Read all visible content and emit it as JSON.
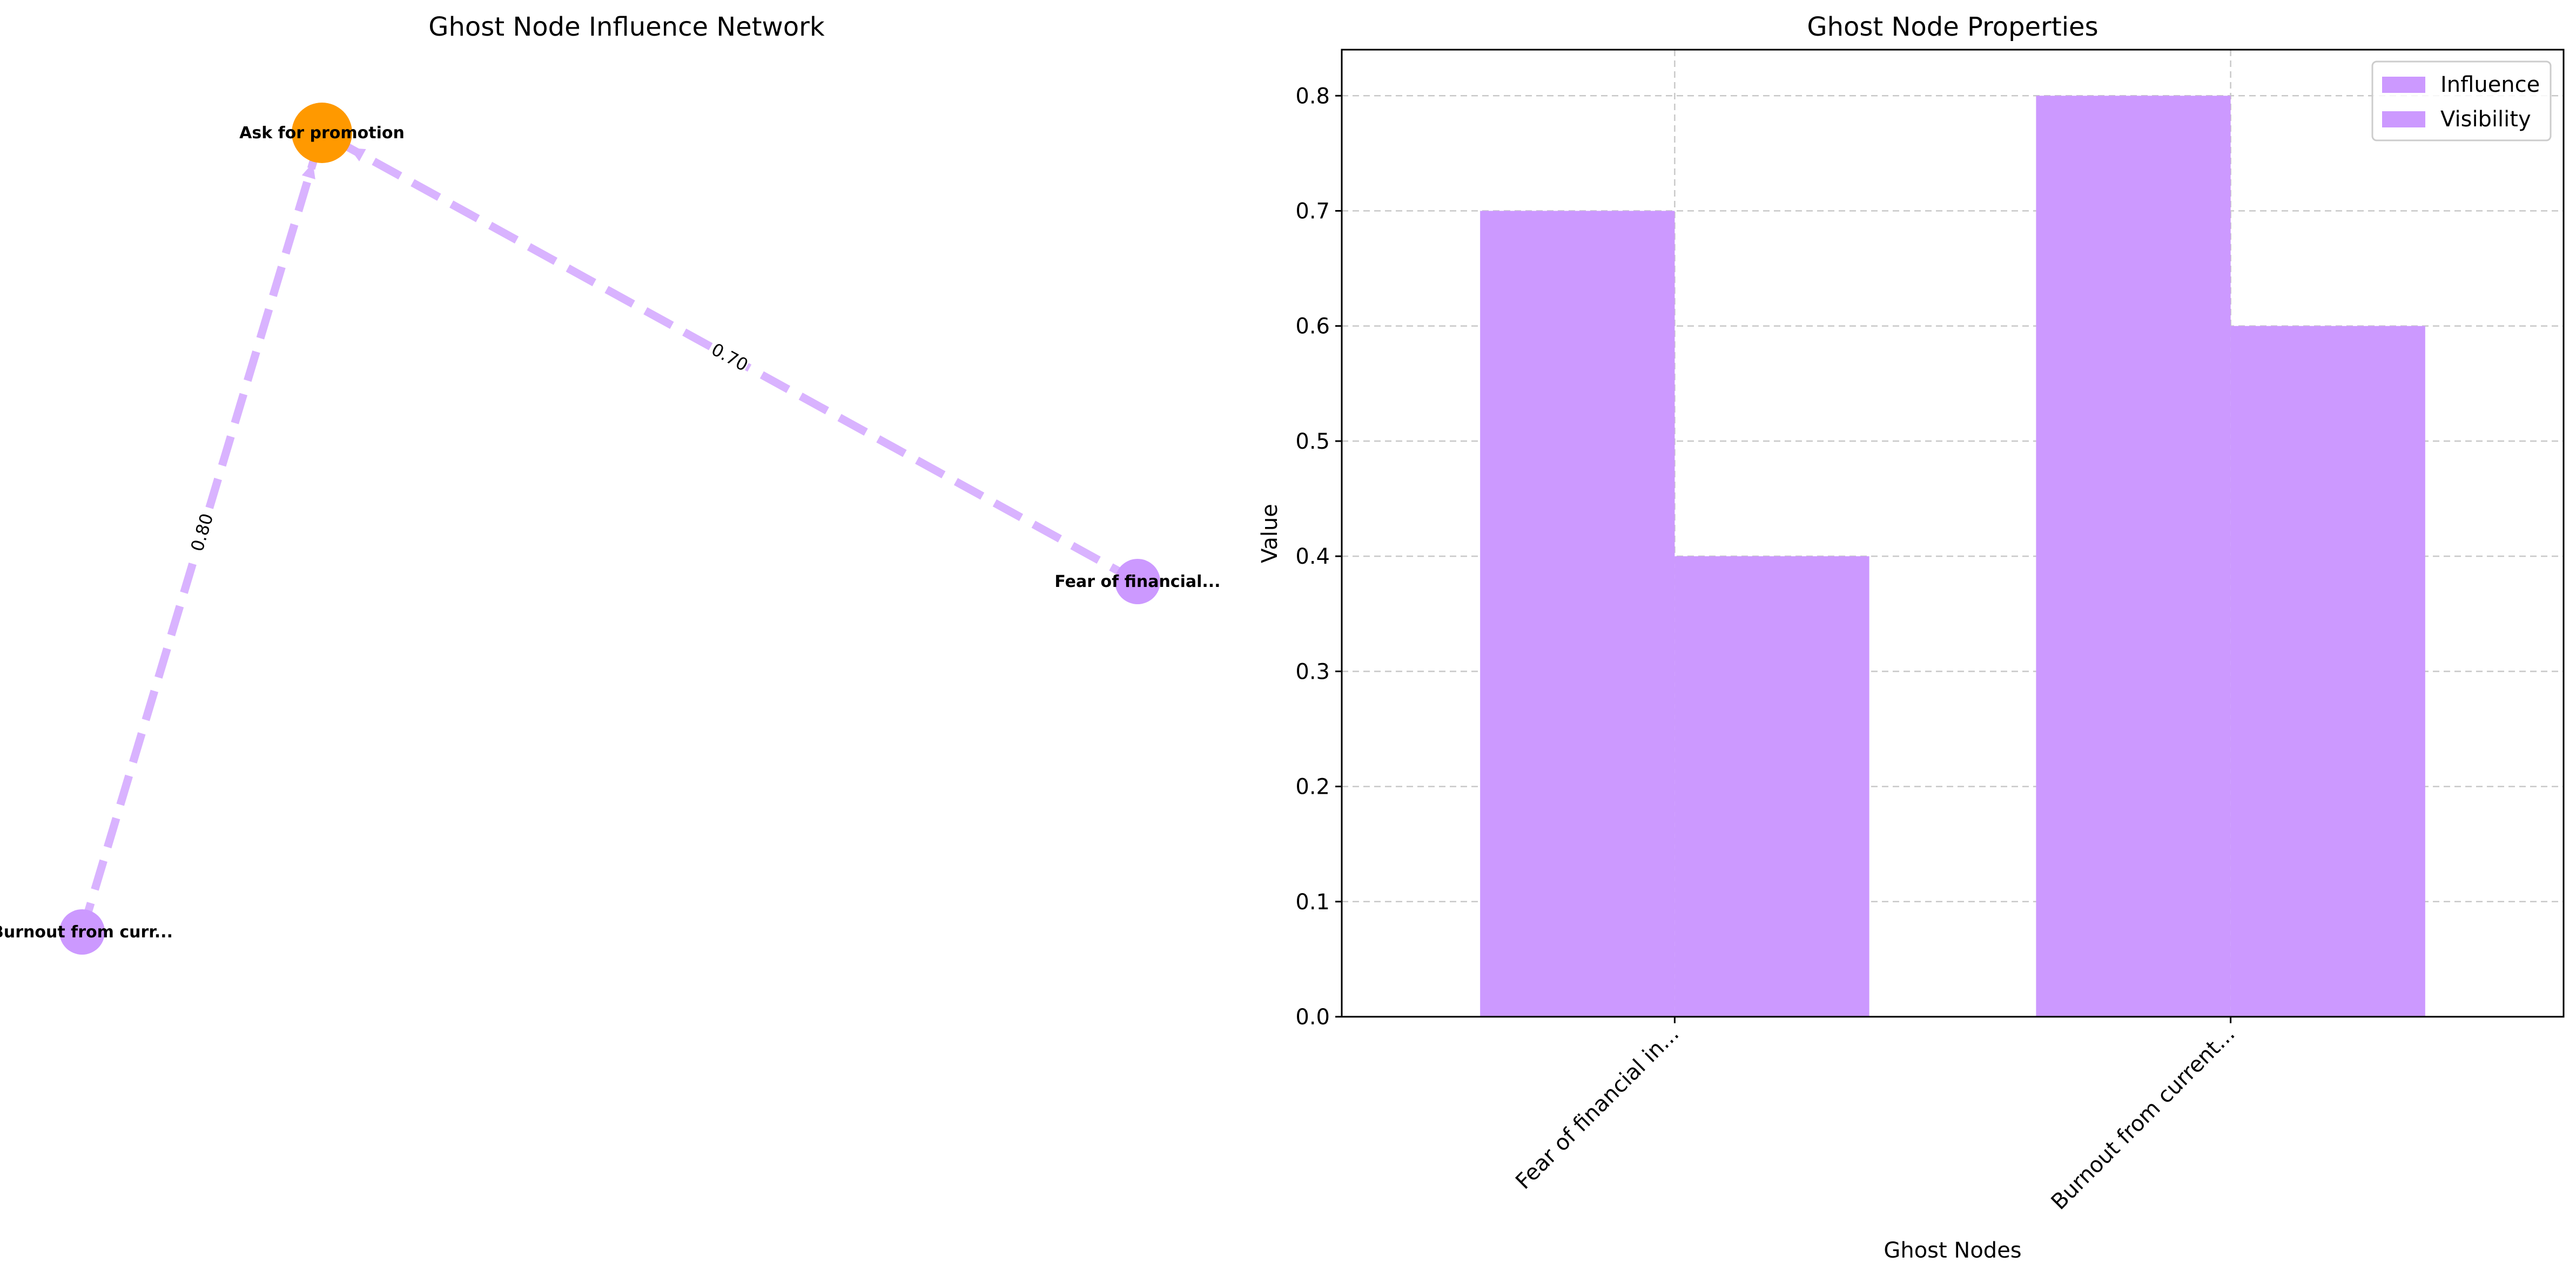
{
  "network": {
    "title": "Ghost Node Influence Network",
    "nodes": [
      {
        "id": "target",
        "label": "Ask for promotion",
        "role": "target",
        "color": "#ff9900"
      },
      {
        "id": "fear",
        "label": "Fear of financial...",
        "role": "ghost",
        "color": "#cc99ff"
      },
      {
        "id": "burnout",
        "label": "Burnout from curr...",
        "role": "ghost",
        "color": "#cc99ff"
      }
    ],
    "edges": [
      {
        "from": "fear",
        "to": "target",
        "weight_label": "0.70",
        "color": "#d9b3ff",
        "style": "dashed"
      },
      {
        "from": "burnout",
        "to": "target",
        "weight_label": "0.80",
        "color": "#d9b3ff",
        "style": "dashed"
      }
    ]
  },
  "chart_data": {
    "type": "bar",
    "title": "Ghost Node Properties",
    "xlabel": "Ghost Nodes",
    "ylabel": "Value",
    "categories": [
      "Fear of financial in...",
      "Burnout from current..."
    ],
    "series": [
      {
        "name": "Influence",
        "values": [
          0.7,
          0.8
        ],
        "color": "#cc99ff"
      },
      {
        "name": "Visibility",
        "values": [
          0.4,
          0.6
        ],
        "color": "#cc99ff"
      }
    ],
    "ylim": [
      0,
      0.84
    ],
    "yticks": [
      "0.0",
      "0.1",
      "0.2",
      "0.3",
      "0.4",
      "0.5",
      "0.6",
      "0.7",
      "0.8"
    ],
    "grid": true,
    "legend_position": "top-right"
  }
}
